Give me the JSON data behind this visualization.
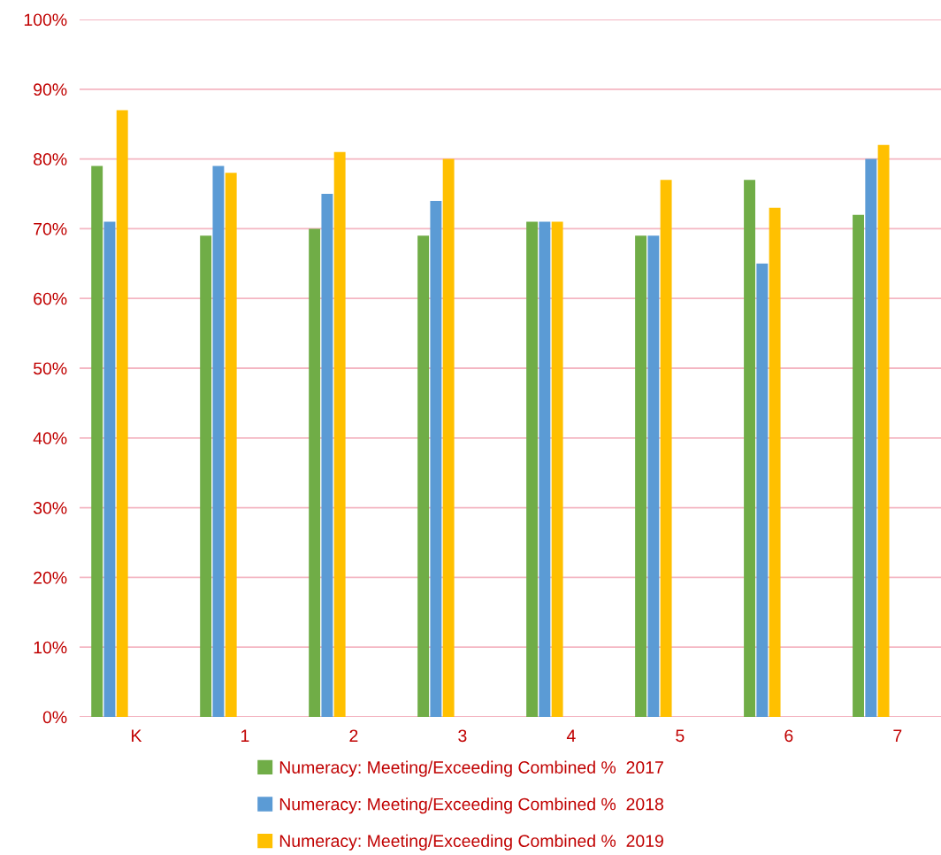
{
  "chart_data": {
    "type": "bar",
    "categories": [
      "K",
      "1",
      "2",
      "3",
      "4",
      "5",
      "6",
      "7"
    ],
    "series": [
      {
        "name": "Numeracy: Meeting/Exceeding Combined %  2017",
        "color": "#70ad47",
        "values": [
          79,
          69,
          70,
          69,
          71,
          69,
          77,
          72
        ]
      },
      {
        "name": "Numeracy: Meeting/Exceeding Combined %  2018",
        "color": "#5b9bd5",
        "values": [
          71,
          79,
          75,
          74,
          71,
          69,
          65,
          80
        ]
      },
      {
        "name": "Numeracy: Meeting/Exceeding Combined %  2019",
        "color": "#ffc000",
        "values": [
          87,
          78,
          81,
          80,
          71,
          77,
          73,
          82
        ]
      }
    ],
    "ylim": [
      0,
      100
    ],
    "yticks": [
      {
        "value": 0,
        "label": "0%"
      },
      {
        "value": 10,
        "label": "10%"
      },
      {
        "value": 20,
        "label": "20%"
      },
      {
        "value": 30,
        "label": "30%"
      },
      {
        "value": 40,
        "label": "40%"
      },
      {
        "value": 50,
        "label": "50%"
      },
      {
        "value": 60,
        "label": "60%"
      },
      {
        "value": 70,
        "label": "70%"
      },
      {
        "value": 80,
        "label": "80%"
      },
      {
        "value": 90,
        "label": "90%"
      },
      {
        "value": 100,
        "label": "100%"
      }
    ],
    "grid": "y",
    "legend": "bottom"
  }
}
